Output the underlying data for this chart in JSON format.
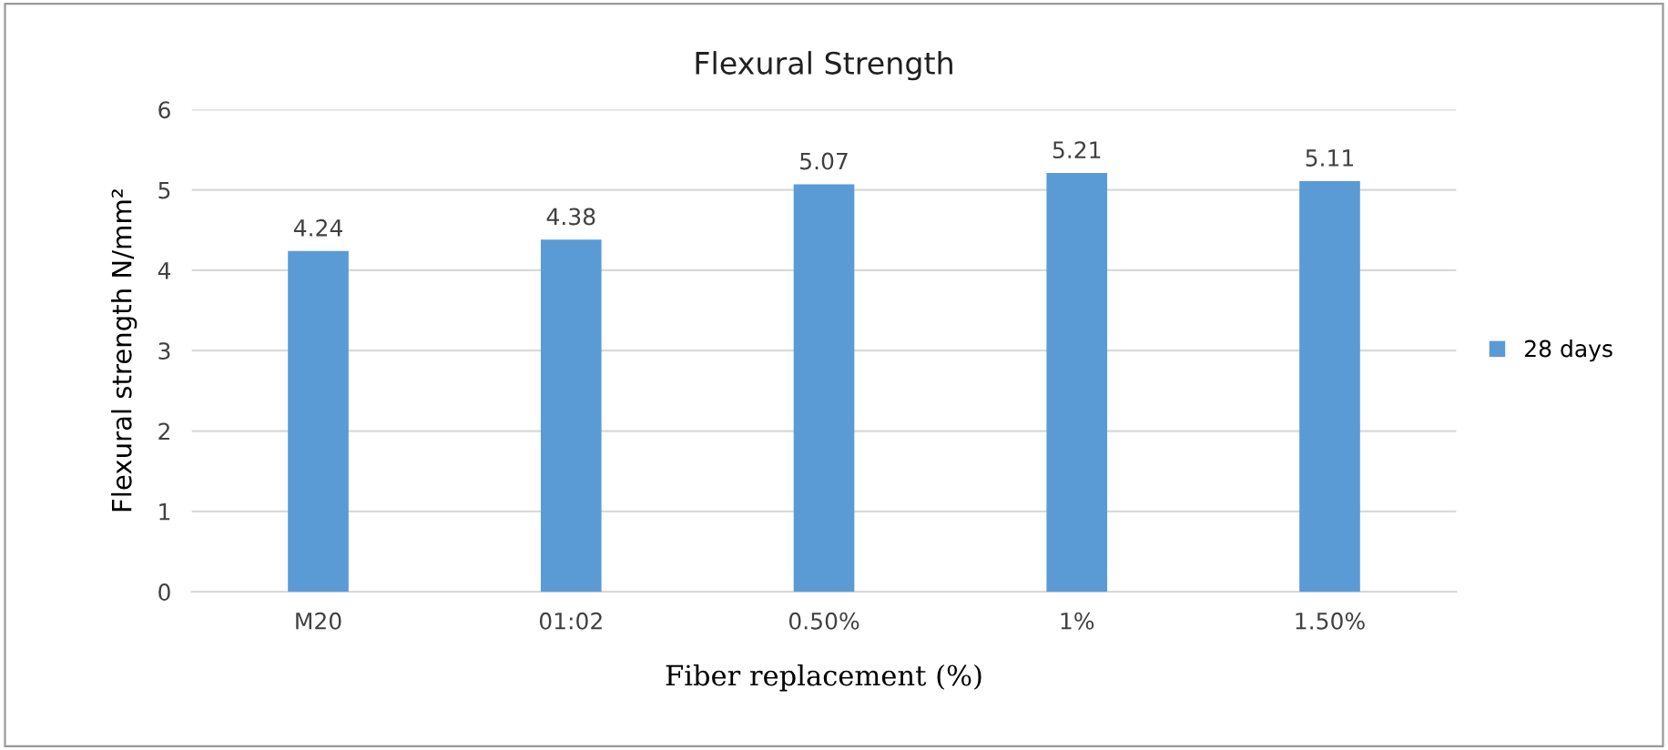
{
  "chart_data": {
    "type": "bar",
    "title": "Flexural Strength",
    "xlabel": "Fiber replacement (%)",
    "ylabel": "Flexural strength N/mm²",
    "categories": [
      "M20",
      "01:02",
      "0.50%",
      "1%",
      "1.50%"
    ],
    "series": [
      {
        "name": "28 days",
        "color": "#5b9bd5",
        "values": [
          4.24,
          4.38,
          5.07,
          5.21,
          5.11
        ]
      }
    ],
    "ylim": [
      0,
      6
    ],
    "yticks": [
      0,
      1,
      2,
      3,
      4,
      5,
      6
    ],
    "grid": "y",
    "legend": "right",
    "data_labels": true
  }
}
